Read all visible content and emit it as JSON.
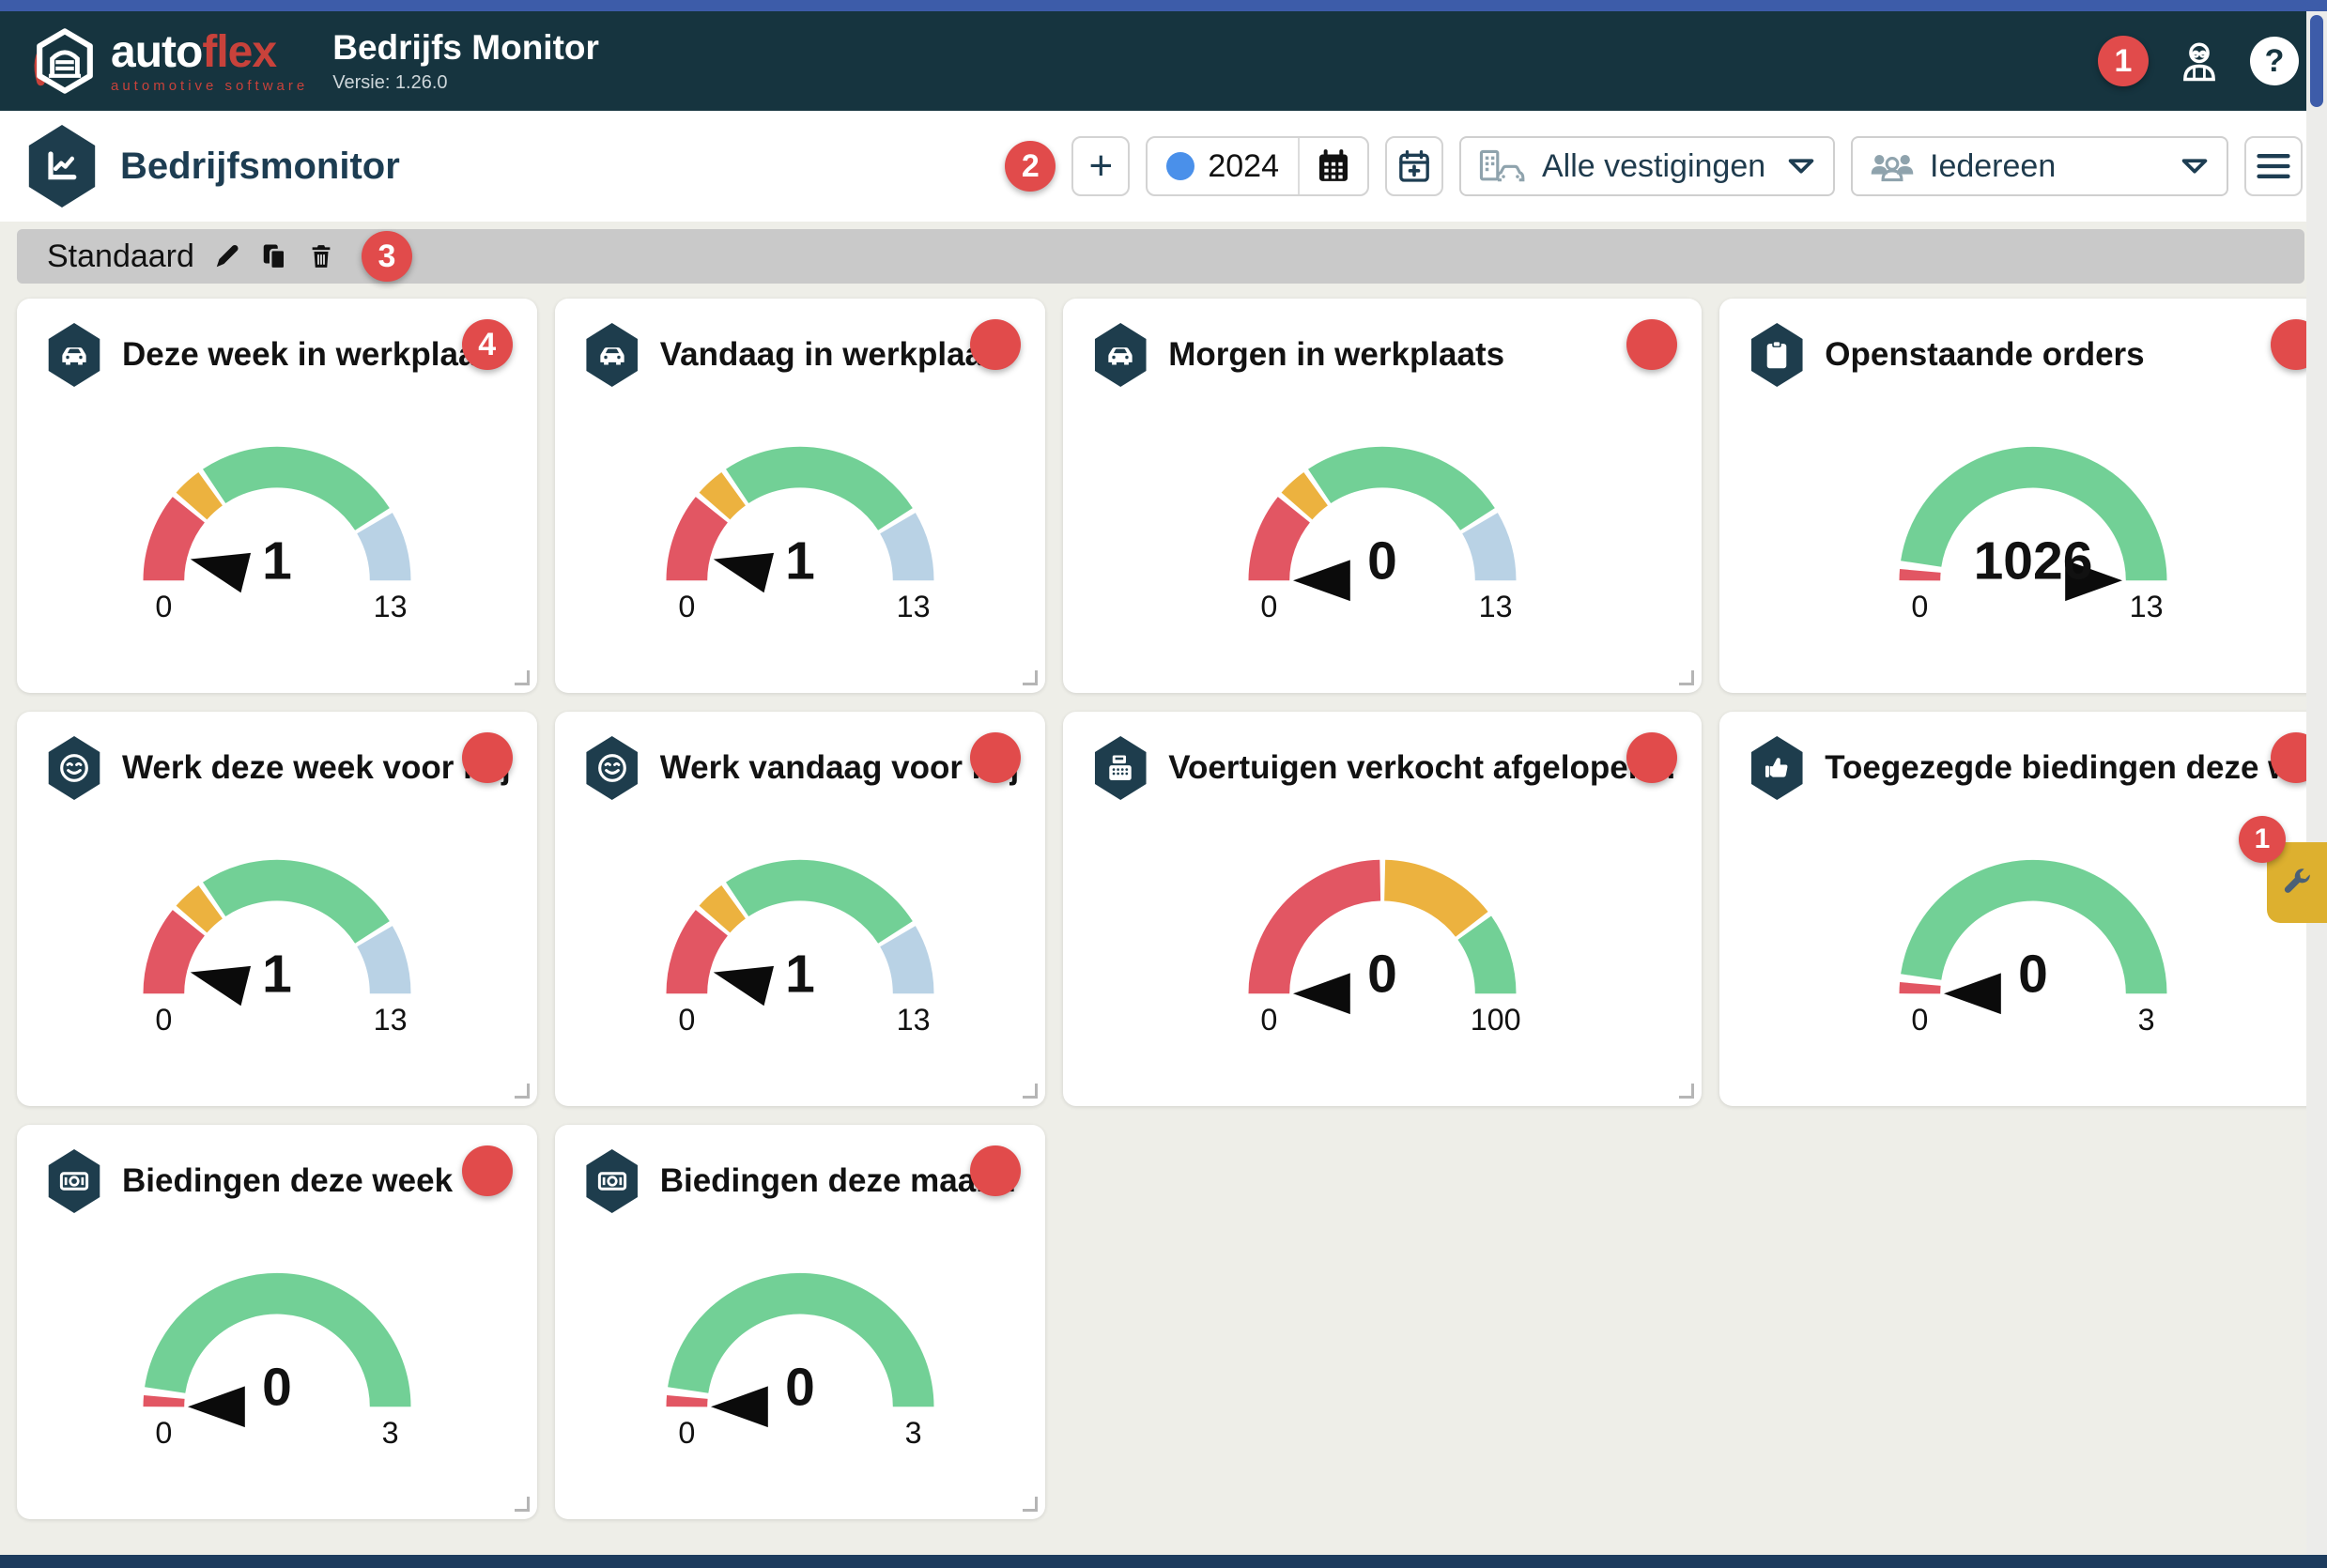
{
  "colors": {
    "window_top": "#3d5ca9",
    "window_bottom": "#1d3c5e",
    "header_bg": "#16343f",
    "accent_teal": "#1e3d4d",
    "badge_red": "#e14b4b",
    "brand_red": "#c8423b",
    "page_bg": "#eeeee8",
    "tabbar_bg": "#c9c9c9",
    "side_tab_yellow": "#ddb02f",
    "gauge_red": "#e25663",
    "gauge_orange": "#ecb23f",
    "gauge_green": "#72d096",
    "gauge_blue": "#b9d2e5",
    "year_dot_blue": "#4a90ea"
  },
  "header": {
    "brand_white": "auto",
    "brand_red": "flex",
    "brand_tagline": "automotive software",
    "app_title": "Bedrijfs Monitor",
    "version": "Versie: 1.26.0",
    "notification_badge": "1",
    "help_label": "?"
  },
  "toolbar": {
    "page_title": "Bedrijfsmonitor",
    "annotation_badge": "2",
    "add_label": "+",
    "year_value": "2024",
    "branch_filter_value": "Alle vestigingen",
    "people_filter_value": "Iedereen"
  },
  "tabbar": {
    "active_tab": "Standaard",
    "annotation_badge": "3"
  },
  "side_tab": {
    "badge": "1"
  },
  "chart_data": [
    {
      "type": "gauge",
      "title": "Deze week in werkplaats",
      "icon": "car-icon",
      "badge": "4",
      "value": 1,
      "min": 0,
      "max": 13,
      "segments": [
        {
          "from": 0,
          "to": 0.215,
          "color": "#e25663"
        },
        {
          "from": 0.228,
          "to": 0.3,
          "color": "#ecb23f"
        },
        {
          "from": 0.313,
          "to": 0.818,
          "color": "#72d096"
        },
        {
          "from": 0.831,
          "to": 1,
          "color": "#b9d2e5"
        }
      ]
    },
    {
      "type": "gauge",
      "title": "Vandaag in werkplaats",
      "icon": "car-icon",
      "value": 1,
      "min": 0,
      "max": 13,
      "segments": [
        {
          "from": 0,
          "to": 0.215,
          "color": "#e25663"
        },
        {
          "from": 0.228,
          "to": 0.3,
          "color": "#ecb23f"
        },
        {
          "from": 0.313,
          "to": 0.818,
          "color": "#72d096"
        },
        {
          "from": 0.831,
          "to": 1,
          "color": "#b9d2e5"
        }
      ]
    },
    {
      "type": "gauge",
      "title": "Morgen in werkplaats",
      "icon": "car-icon",
      "value": 0,
      "min": 0,
      "max": 13,
      "segments": [
        {
          "from": 0,
          "to": 0.215,
          "color": "#e25663"
        },
        {
          "from": 0.228,
          "to": 0.3,
          "color": "#ecb23f"
        },
        {
          "from": 0.313,
          "to": 0.818,
          "color": "#72d096"
        },
        {
          "from": 0.831,
          "to": 1,
          "color": "#b9d2e5"
        }
      ]
    },
    {
      "type": "gauge",
      "title": "Openstaande orders",
      "icon": "clipboard-icon",
      "value": 1026,
      "min": 0,
      "max": 13,
      "segments": [
        {
          "from": 0,
          "to": 0.027,
          "color": "#e25663"
        },
        {
          "from": 0.047,
          "to": 1,
          "color": "#72d096"
        }
      ]
    },
    {
      "type": "gauge",
      "title": "Werk deze week voor mij",
      "icon": "smiley-icon",
      "value": 1,
      "min": 0,
      "max": 13,
      "segments": [
        {
          "from": 0,
          "to": 0.215,
          "color": "#e25663"
        },
        {
          "from": 0.228,
          "to": 0.3,
          "color": "#ecb23f"
        },
        {
          "from": 0.313,
          "to": 0.818,
          "color": "#72d096"
        },
        {
          "from": 0.831,
          "to": 1,
          "color": "#b9d2e5"
        }
      ]
    },
    {
      "type": "gauge",
      "title": "Werk vandaag voor mij",
      "icon": "smiley-icon",
      "value": 1,
      "min": 0,
      "max": 13,
      "segments": [
        {
          "from": 0,
          "to": 0.215,
          "color": "#e25663"
        },
        {
          "from": 0.228,
          "to": 0.3,
          "color": "#ecb23f"
        },
        {
          "from": 0.313,
          "to": 0.818,
          "color": "#72d096"
        },
        {
          "from": 0.831,
          "to": 1,
          "color": "#b9d2e5"
        }
      ]
    },
    {
      "type": "gauge",
      "title": "Voertuigen verkocht afgelopen...",
      "icon": "cash-register-icon",
      "value": 0,
      "min": 0,
      "max": 100,
      "segments": [
        {
          "from": 0,
          "to": 0.494,
          "color": "#e25663"
        },
        {
          "from": 0.507,
          "to": 0.79,
          "color": "#ecb23f"
        },
        {
          "from": 0.803,
          "to": 1,
          "color": "#72d096"
        }
      ]
    },
    {
      "type": "gauge",
      "title": "Toegezegde biedingen deze w...",
      "icon": "thumbs-up-icon",
      "value": 0,
      "min": 0,
      "max": 3,
      "segments": [
        {
          "from": 0,
          "to": 0.027,
          "color": "#e25663"
        },
        {
          "from": 0.047,
          "to": 1,
          "color": "#72d096"
        }
      ]
    },
    {
      "type": "gauge",
      "title": "Biedingen deze week",
      "icon": "banknote-icon",
      "value": 0,
      "min": 0,
      "max": 3,
      "segments": [
        {
          "from": 0,
          "to": 0.027,
          "color": "#e25663"
        },
        {
          "from": 0.047,
          "to": 1,
          "color": "#72d096"
        }
      ]
    },
    {
      "type": "gauge",
      "title": "Biedingen deze maand",
      "icon": "banknote-icon",
      "value": 0,
      "min": 0,
      "max": 3,
      "segments": [
        {
          "from": 0,
          "to": 0.027,
          "color": "#e25663"
        },
        {
          "from": 0.047,
          "to": 1,
          "color": "#72d096"
        }
      ]
    }
  ]
}
